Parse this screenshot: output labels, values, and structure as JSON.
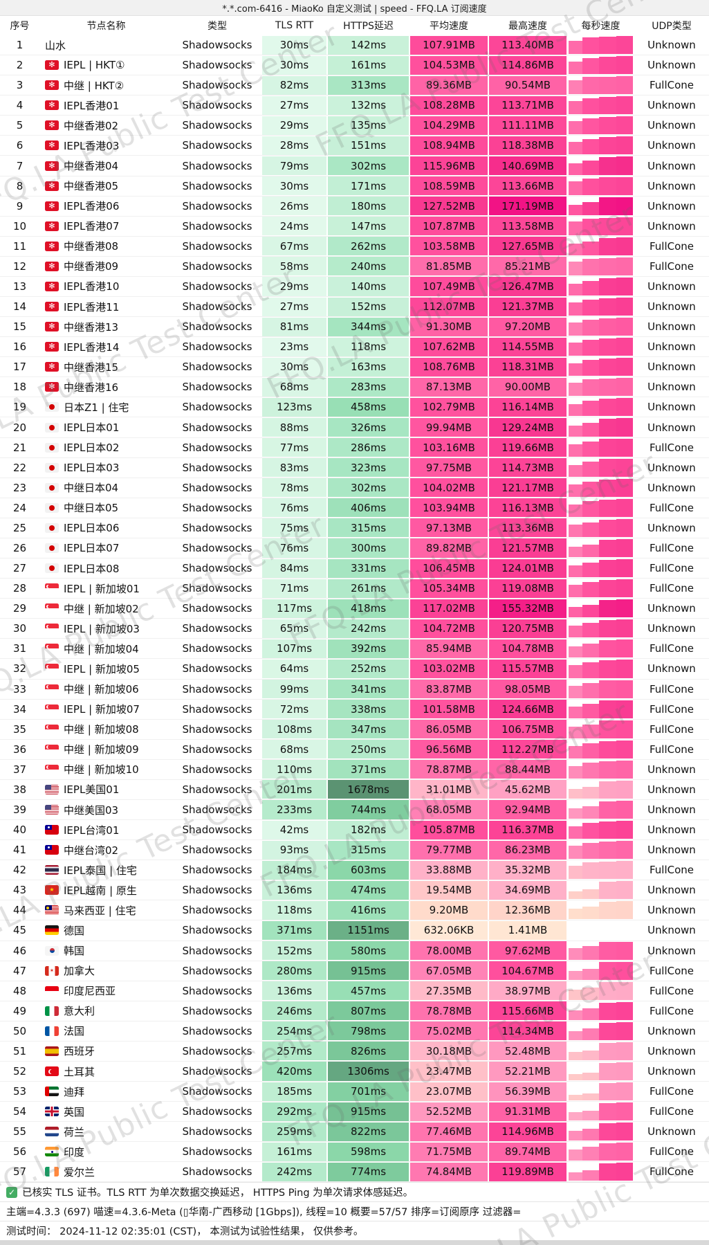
{
  "title": "*.*.com-6416 - MiaoKo 自定义测试 | speed - FFQ.LA 订阅速度",
  "watermark_text": "FFQ.LA Public Test Center",
  "columns": {
    "idx": "序号",
    "name": "节点名称",
    "type": "类型",
    "tls": "TLS RTT",
    "https": "HTTPS延迟",
    "avg": "平均速度",
    "max": "最高速度",
    "persec": "每秒速度",
    "udp": "UDP类型"
  },
  "colors": {
    "latency_low": "#e7fbef",
    "latency_high": "#5a9271",
    "speed_low": "#ffead8",
    "speed_high": "#f21285",
    "checkbox_green": "#44ad63"
  },
  "rows": [
    {
      "idx": "1",
      "flag": "",
      "name": "山水",
      "type": "Shadowsocks",
      "tls": "30ms",
      "https": "142ms",
      "avg": "107.91MB",
      "max": "113.40MB",
      "udp": "Unknown"
    },
    {
      "idx": "2",
      "flag": "hk",
      "name": "IEPL | HKT①",
      "type": "Shadowsocks",
      "tls": "30ms",
      "https": "161ms",
      "avg": "104.53MB",
      "max": "114.86MB",
      "udp": "Unknown"
    },
    {
      "idx": "3",
      "flag": "hk",
      "name": "中继 | HKT②",
      "type": "Shadowsocks",
      "tls": "82ms",
      "https": "313ms",
      "avg": "89.36MB",
      "max": "90.54MB",
      "udp": "FullCone"
    },
    {
      "idx": "4",
      "flag": "hk",
      "name": "IEPL香港01",
      "type": "Shadowsocks",
      "tls": "27ms",
      "https": "132ms",
      "avg": "108.28MB",
      "max": "113.71MB",
      "udp": "Unknown"
    },
    {
      "idx": "5",
      "flag": "hk",
      "name": "中继香港02",
      "type": "Shadowsocks",
      "tls": "29ms",
      "https": "135ms",
      "avg": "104.29MB",
      "max": "111.11MB",
      "udp": "Unknown"
    },
    {
      "idx": "6",
      "flag": "hk",
      "name": "IEPL香港03",
      "type": "Shadowsocks",
      "tls": "28ms",
      "https": "151ms",
      "avg": "108.94MB",
      "max": "118.38MB",
      "udp": "Unknown"
    },
    {
      "idx": "7",
      "flag": "hk",
      "name": "中继香港04",
      "type": "Shadowsocks",
      "tls": "79ms",
      "https": "302ms",
      "avg": "115.96MB",
      "max": "140.69MB",
      "udp": "Unknown"
    },
    {
      "idx": "8",
      "flag": "hk",
      "name": "中继香港05",
      "type": "Shadowsocks",
      "tls": "30ms",
      "https": "171ms",
      "avg": "108.59MB",
      "max": "113.66MB",
      "udp": "Unknown"
    },
    {
      "idx": "9",
      "flag": "hk",
      "name": "IEPL香港06",
      "type": "Shadowsocks",
      "tls": "26ms",
      "https": "180ms",
      "avg": "127.52MB",
      "max": "171.19MB",
      "udp": "Unknown"
    },
    {
      "idx": "10",
      "flag": "hk",
      "name": "IEPL香港07",
      "type": "Shadowsocks",
      "tls": "24ms",
      "https": "147ms",
      "avg": "107.87MB",
      "max": "113.58MB",
      "udp": "Unknown"
    },
    {
      "idx": "11",
      "flag": "hk",
      "name": "中继香港08",
      "type": "Shadowsocks",
      "tls": "67ms",
      "https": "262ms",
      "avg": "103.58MB",
      "max": "127.65MB",
      "udp": "FullCone"
    },
    {
      "idx": "12",
      "flag": "hk",
      "name": "中继香港09",
      "type": "Shadowsocks",
      "tls": "58ms",
      "https": "240ms",
      "avg": "81.85MB",
      "max": "85.21MB",
      "udp": "FullCone"
    },
    {
      "idx": "13",
      "flag": "hk",
      "name": "IEPL香港10",
      "type": "Shadowsocks",
      "tls": "29ms",
      "https": "140ms",
      "avg": "107.49MB",
      "max": "126.47MB",
      "udp": "Unknown"
    },
    {
      "idx": "14",
      "flag": "hk",
      "name": "IEPL香港11",
      "type": "Shadowsocks",
      "tls": "27ms",
      "https": "152ms",
      "avg": "112.07MB",
      "max": "121.37MB",
      "udp": "Unknown"
    },
    {
      "idx": "15",
      "flag": "hk",
      "name": "中继香港13",
      "type": "Shadowsocks",
      "tls": "81ms",
      "https": "344ms",
      "avg": "91.30MB",
      "max": "97.20MB",
      "udp": "Unknown"
    },
    {
      "idx": "16",
      "flag": "hk",
      "name": "IEPL香港14",
      "type": "Shadowsocks",
      "tls": "23ms",
      "https": "118ms",
      "avg": "107.62MB",
      "max": "114.55MB",
      "udp": "Unknown"
    },
    {
      "idx": "17",
      "flag": "hk",
      "name": "中继香港15",
      "type": "Shadowsocks",
      "tls": "30ms",
      "https": "163ms",
      "avg": "108.76MB",
      "max": "118.31MB",
      "udp": "Unknown"
    },
    {
      "idx": "18",
      "flag": "hk",
      "name": "中继香港16",
      "type": "Shadowsocks",
      "tls": "68ms",
      "https": "283ms",
      "avg": "87.13MB",
      "max": "90.00MB",
      "udp": "Unknown"
    },
    {
      "idx": "19",
      "flag": "jp",
      "name": "日本Z1 | 住宅",
      "type": "Shadowsocks",
      "tls": "123ms",
      "https": "458ms",
      "avg": "102.79MB",
      "max": "116.14MB",
      "udp": "Unknown"
    },
    {
      "idx": "20",
      "flag": "jp",
      "name": "IEPL日本01",
      "type": "Shadowsocks",
      "tls": "88ms",
      "https": "326ms",
      "avg": "99.94MB",
      "max": "129.24MB",
      "udp": "Unknown"
    },
    {
      "idx": "21",
      "flag": "jp",
      "name": "IEPL日本02",
      "type": "Shadowsocks",
      "tls": "77ms",
      "https": "286ms",
      "avg": "103.16MB",
      "max": "119.66MB",
      "udp": "FullCone"
    },
    {
      "idx": "22",
      "flag": "jp",
      "name": "IEPL日本03",
      "type": "Shadowsocks",
      "tls": "83ms",
      "https": "323ms",
      "avg": "97.75MB",
      "max": "114.73MB",
      "udp": "Unknown"
    },
    {
      "idx": "23",
      "flag": "jp",
      "name": "中继日本04",
      "type": "Shadowsocks",
      "tls": "78ms",
      "https": "302ms",
      "avg": "104.02MB",
      "max": "121.17MB",
      "udp": "Unknown"
    },
    {
      "idx": "24",
      "flag": "jp",
      "name": "中继日本05",
      "type": "Shadowsocks",
      "tls": "76ms",
      "https": "406ms",
      "avg": "103.94MB",
      "max": "116.13MB",
      "udp": "FullCone"
    },
    {
      "idx": "25",
      "flag": "jp",
      "name": "IEPL日本06",
      "type": "Shadowsocks",
      "tls": "75ms",
      "https": "315ms",
      "avg": "97.13MB",
      "max": "113.36MB",
      "udp": "Unknown"
    },
    {
      "idx": "26",
      "flag": "jp",
      "name": "IEPL日本07",
      "type": "Shadowsocks",
      "tls": "76ms",
      "https": "300ms",
      "avg": "89.82MB",
      "max": "121.57MB",
      "udp": "FullCone"
    },
    {
      "idx": "27",
      "flag": "jp",
      "name": "IEPL日本08",
      "type": "Shadowsocks",
      "tls": "84ms",
      "https": "331ms",
      "avg": "106.45MB",
      "max": "124.01MB",
      "udp": "FullCone"
    },
    {
      "idx": "28",
      "flag": "sg",
      "name": "IEPL | 新加坡01",
      "type": "Shadowsocks",
      "tls": "71ms",
      "https": "261ms",
      "avg": "105.34MB",
      "max": "119.08MB",
      "udp": "FullCone"
    },
    {
      "idx": "29",
      "flag": "sg",
      "name": "中继 | 新加坡02",
      "type": "Shadowsocks",
      "tls": "117ms",
      "https": "418ms",
      "avg": "117.02MB",
      "max": "155.32MB",
      "udp": "Unknown"
    },
    {
      "idx": "30",
      "flag": "sg",
      "name": "IEPL | 新加坡03",
      "type": "Shadowsocks",
      "tls": "65ms",
      "https": "242ms",
      "avg": "104.72MB",
      "max": "120.75MB",
      "udp": "Unknown"
    },
    {
      "idx": "31",
      "flag": "sg",
      "name": "中继 | 新加坡04",
      "type": "Shadowsocks",
      "tls": "107ms",
      "https": "392ms",
      "avg": "85.94MB",
      "max": "104.78MB",
      "udp": "FullCone"
    },
    {
      "idx": "32",
      "flag": "sg",
      "name": "IEPL | 新加坡05",
      "type": "Shadowsocks",
      "tls": "64ms",
      "https": "252ms",
      "avg": "103.02MB",
      "max": "115.57MB",
      "udp": "Unknown"
    },
    {
      "idx": "33",
      "flag": "sg",
      "name": "中继 | 新加坡06",
      "type": "Shadowsocks",
      "tls": "99ms",
      "https": "341ms",
      "avg": "83.87MB",
      "max": "98.05MB",
      "udp": "FullCone"
    },
    {
      "idx": "34",
      "flag": "sg",
      "name": "IEPL | 新加坡07",
      "type": "Shadowsocks",
      "tls": "72ms",
      "https": "338ms",
      "avg": "101.58MB",
      "max": "124.66MB",
      "udp": "FullCone"
    },
    {
      "idx": "35",
      "flag": "sg",
      "name": "中继 | 新加坡08",
      "type": "Shadowsocks",
      "tls": "108ms",
      "https": "347ms",
      "avg": "86.05MB",
      "max": "106.75MB",
      "udp": "FullCone"
    },
    {
      "idx": "36",
      "flag": "sg",
      "name": "中继 | 新加坡09",
      "type": "Shadowsocks",
      "tls": "68ms",
      "https": "250ms",
      "avg": "96.56MB",
      "max": "112.27MB",
      "udp": "FullCone"
    },
    {
      "idx": "37",
      "flag": "sg",
      "name": "中继 | 新加坡10",
      "type": "Shadowsocks",
      "tls": "110ms",
      "https": "371ms",
      "avg": "78.87MB",
      "max": "88.44MB",
      "udp": "Unknown"
    },
    {
      "idx": "38",
      "flag": "us",
      "name": "IEPL美国01",
      "type": "Shadowsocks",
      "tls": "201ms",
      "https": "1678ms",
      "avg": "31.01MB",
      "max": "45.62MB",
      "udp": "Unknown"
    },
    {
      "idx": "39",
      "flag": "us",
      "name": "中继美国03",
      "type": "Shadowsocks",
      "tls": "233ms",
      "https": "744ms",
      "avg": "68.05MB",
      "max": "92.94MB",
      "udp": "Unknown"
    },
    {
      "idx": "40",
      "flag": "tw",
      "name": "IEPL台湾01",
      "type": "Shadowsocks",
      "tls": "42ms",
      "https": "182ms",
      "avg": "105.87MB",
      "max": "116.37MB",
      "udp": "Unknown"
    },
    {
      "idx": "41",
      "flag": "tw",
      "name": "中继台湾02",
      "type": "Shadowsocks",
      "tls": "93ms",
      "https": "315ms",
      "avg": "79.77MB",
      "max": "86.23MB",
      "udp": "Unknown"
    },
    {
      "idx": "42",
      "flag": "th",
      "name": "IEPL泰国 | 住宅",
      "type": "Shadowsocks",
      "tls": "184ms",
      "https": "603ms",
      "avg": "33.88MB",
      "max": "35.32MB",
      "udp": "FullCone"
    },
    {
      "idx": "43",
      "flag": "vn",
      "name": "IEPL越南 | 原生",
      "type": "Shadowsocks",
      "tls": "136ms",
      "https": "474ms",
      "avg": "19.54MB",
      "max": "34.69MB",
      "udp": "Unknown"
    },
    {
      "idx": "44",
      "flag": "my",
      "name": "马来西亚 | 住宅",
      "type": "Shadowsocks",
      "tls": "118ms",
      "https": "416ms",
      "avg": "9.20MB",
      "max": "12.36MB",
      "udp": "Unknown"
    },
    {
      "idx": "45",
      "flag": "de",
      "name": "德国",
      "type": "Shadowsocks",
      "tls": "371ms",
      "https": "1151ms",
      "avg": "632.06KB",
      "max": "1.41MB",
      "udp": "Unknown"
    },
    {
      "idx": "46",
      "flag": "kr",
      "name": "韩国",
      "type": "Shadowsocks",
      "tls": "152ms",
      "https": "580ms",
      "avg": "78.00MB",
      "max": "97.62MB",
      "udp": "Unknown"
    },
    {
      "idx": "47",
      "flag": "ca",
      "name": "加拿大",
      "type": "Shadowsocks",
      "tls": "280ms",
      "https": "915ms",
      "avg": "67.05MB",
      "max": "104.67MB",
      "udp": "FullCone"
    },
    {
      "idx": "48",
      "flag": "id",
      "name": "印度尼西亚",
      "type": "Shadowsocks",
      "tls": "136ms",
      "https": "457ms",
      "avg": "27.35MB",
      "max": "38.97MB",
      "udp": "FullCone"
    },
    {
      "idx": "49",
      "flag": "it",
      "name": "意大利",
      "type": "Shadowsocks",
      "tls": "246ms",
      "https": "807ms",
      "avg": "78.78MB",
      "max": "115.66MB",
      "udp": "FullCone"
    },
    {
      "idx": "50",
      "flag": "fr",
      "name": "法国",
      "type": "Shadowsocks",
      "tls": "254ms",
      "https": "798ms",
      "avg": "75.02MB",
      "max": "114.34MB",
      "udp": "Unknown"
    },
    {
      "idx": "51",
      "flag": "es",
      "name": "西班牙",
      "type": "Shadowsocks",
      "tls": "257ms",
      "https": "826ms",
      "avg": "30.18MB",
      "max": "52.48MB",
      "udp": "Unknown"
    },
    {
      "idx": "52",
      "flag": "tr",
      "name": "土耳其",
      "type": "Shadowsocks",
      "tls": "420ms",
      "https": "1306ms",
      "avg": "23.47MB",
      "max": "52.21MB",
      "udp": "Unknown"
    },
    {
      "idx": "53",
      "flag": "ae",
      "name": "迪拜",
      "type": "Shadowsocks",
      "tls": "185ms",
      "https": "701ms",
      "avg": "23.07MB",
      "max": "56.39MB",
      "udp": "FullCone"
    },
    {
      "idx": "54",
      "flag": "gb",
      "name": "英国",
      "type": "Shadowsocks",
      "tls": "292ms",
      "https": "915ms",
      "avg": "52.52MB",
      "max": "91.31MB",
      "udp": "FullCone"
    },
    {
      "idx": "55",
      "flag": "nl",
      "name": "荷兰",
      "type": "Shadowsocks",
      "tls": "259ms",
      "https": "822ms",
      "avg": "77.46MB",
      "max": "114.96MB",
      "udp": "Unknown"
    },
    {
      "idx": "56",
      "flag": "in",
      "name": "印度",
      "type": "Shadowsocks",
      "tls": "161ms",
      "https": "598ms",
      "avg": "71.75MB",
      "max": "89.74MB",
      "udp": "FullCone"
    },
    {
      "idx": "57",
      "flag": "ie",
      "name": "爱尔兰",
      "type": "Shadowsocks",
      "tls": "242ms",
      "https": "774ms",
      "avg": "74.84MB",
      "max": "119.89MB",
      "udp": "FullCone"
    }
  ],
  "footer": {
    "line1": "已核实 TLS 证书。TLS RTT 为单次数据交换延迟， HTTPS Ping 为单次请求体感延迟。",
    "line2": "主端=4.3.3 (697) 喵速=4.3.6-Meta (▯华南-广西移动 [1Gbps]), 线程=10 概要=57/57 排序=订阅原序 过滤器=",
    "line3": "测试时间： 2024-11-12 02:35:01 (CST)， 本测试为试验性结果， 仅供参考。"
  }
}
